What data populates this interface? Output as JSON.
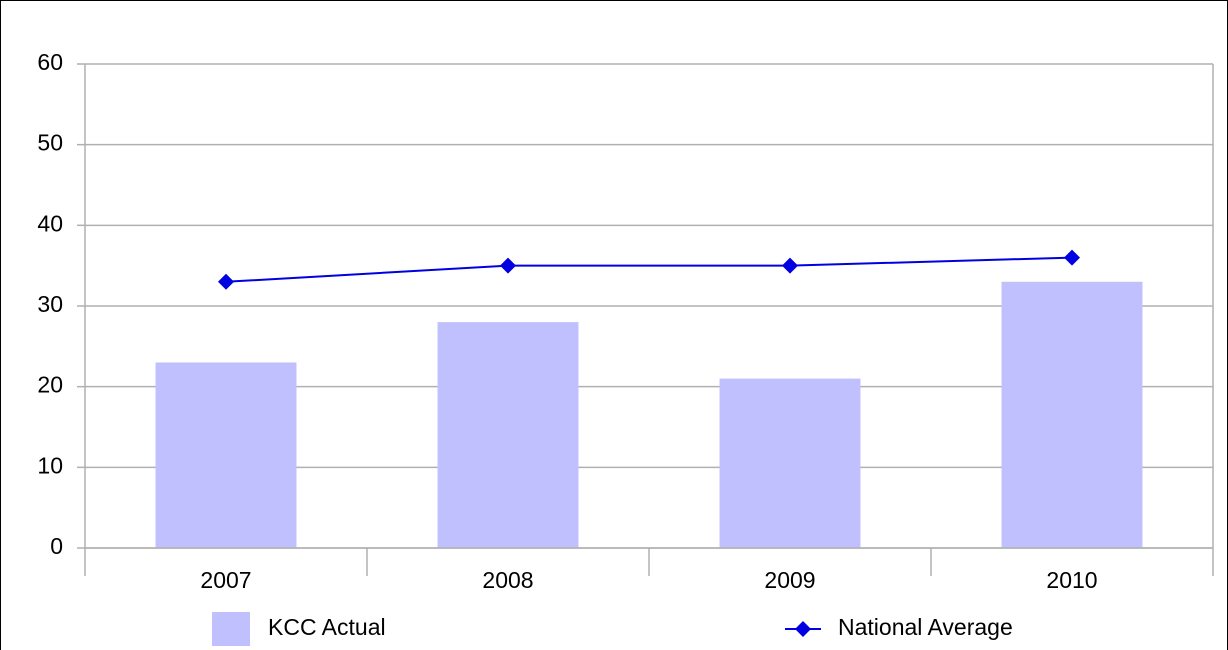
{
  "chart_data": {
    "type": "bar",
    "categories": [
      "2007",
      "2008",
      "2009",
      "2010"
    ],
    "series": [
      {
        "name": "KCC Actual",
        "type": "bar",
        "color": "#c0c0ff",
        "values": [
          23,
          28,
          21,
          33
        ]
      },
      {
        "name": "National Average",
        "type": "line",
        "color": "#0000e0",
        "values": [
          33,
          35,
          35,
          36
        ]
      }
    ],
    "ylim": [
      0,
      60
    ],
    "yticks": [
      0,
      10,
      20,
      30,
      40,
      50,
      60
    ],
    "grid": true,
    "legend": "bottom"
  }
}
